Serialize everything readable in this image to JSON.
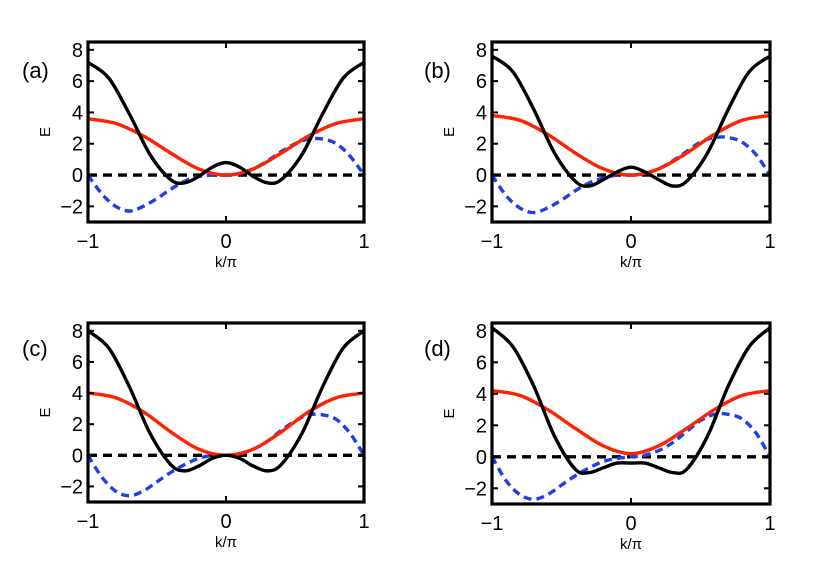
{
  "figure": {
    "description_colors": {
      "black": "#000000",
      "red": "#ff2200",
      "blue": "#1f3fe8"
    }
  },
  "chart_data": [
    {
      "panel": "(a)",
      "type": "line",
      "xlabel": "k/π",
      "ylabel": "E",
      "xlim": [
        -1,
        1
      ],
      "ylim": [
        -3,
        8.5
      ],
      "xticks": [
        -1,
        0,
        1
      ],
      "xtick_labels": [
        "−1",
        "0",
        "1"
      ],
      "yticks": [
        -2,
        0,
        2,
        4,
        6,
        8
      ],
      "ytick_labels": [
        "−2",
        "0",
        "2",
        "4",
        "6",
        "8"
      ],
      "series": [
        {
          "name": "black",
          "color": "#000000",
          "style": "solid",
          "x": [
            -1,
            -0.85,
            -0.7,
            -0.55,
            -0.4,
            -0.3,
            -0.2,
            -0.1,
            0,
            0.1,
            0.2,
            0.3,
            0.4,
            0.55,
            0.7,
            0.85,
            1
          ],
          "y": [
            7.2,
            6.2,
            3.9,
            1.3,
            -0.3,
            -0.5,
            -0.1,
            0.5,
            0.8,
            0.5,
            -0.1,
            -0.5,
            -0.3,
            1.3,
            3.9,
            6.2,
            7.2
          ]
        },
        {
          "name": "red",
          "color": "#ff2200",
          "style": "solid",
          "x": [
            -1,
            -0.8,
            -0.6,
            -0.4,
            -0.2,
            0,
            0.2,
            0.4,
            0.6,
            0.8,
            1
          ],
          "y": [
            3.6,
            3.3,
            2.5,
            1.4,
            0.4,
            0.0,
            0.4,
            1.4,
            2.5,
            3.3,
            3.6
          ]
        },
        {
          "name": "blue",
          "color": "#1f3fe8",
          "style": "dashed",
          "x": [
            -1,
            -0.9,
            -0.8,
            -0.7,
            -0.6,
            -0.5,
            -0.4,
            -0.3,
            -0.2,
            -0.1,
            0,
            0.1,
            0.2,
            0.3,
            0.4,
            0.5,
            0.6,
            0.7,
            0.8,
            0.9,
            1
          ],
          "y": [
            0.0,
            -1.2,
            -2.0,
            -2.3,
            -2.0,
            -1.5,
            -0.9,
            -0.4,
            -0.1,
            0.0,
            0.0,
            0.1,
            0.4,
            0.9,
            1.5,
            2.0,
            2.3,
            2.3,
            2.0,
            1.2,
            0.0
          ]
        },
        {
          "name": "zero-line",
          "color": "#000000",
          "style": "dashed",
          "x": [
            -1,
            1
          ],
          "y": [
            0,
            0
          ]
        }
      ]
    },
    {
      "panel": "(b)",
      "type": "line",
      "xlabel": "k/π",
      "ylabel": "E",
      "xlim": [
        -1,
        1
      ],
      "ylim": [
        -3,
        8.5
      ],
      "xticks": [
        -1,
        0,
        1
      ],
      "xtick_labels": [
        "−1",
        "0",
        "1"
      ],
      "yticks": [
        -2,
        0,
        2,
        4,
        6,
        8
      ],
      "ytick_labels": [
        "−2",
        "0",
        "2",
        "4",
        "6",
        "8"
      ],
      "series": [
        {
          "name": "black",
          "color": "#000000",
          "style": "solid",
          "x": [
            -1,
            -0.85,
            -0.7,
            -0.55,
            -0.4,
            -0.3,
            -0.2,
            -0.1,
            0,
            0.1,
            0.2,
            0.3,
            0.4,
            0.55,
            0.7,
            0.85,
            1
          ],
          "y": [
            7.6,
            6.6,
            4.2,
            1.4,
            -0.4,
            -0.7,
            -0.3,
            0.2,
            0.5,
            0.2,
            -0.3,
            -0.7,
            -0.4,
            1.4,
            4.2,
            6.6,
            7.6
          ]
        },
        {
          "name": "red",
          "color": "#ff2200",
          "style": "solid",
          "x": [
            -1,
            -0.8,
            -0.6,
            -0.4,
            -0.2,
            0,
            0.2,
            0.4,
            0.6,
            0.8,
            1
          ],
          "y": [
            3.8,
            3.5,
            2.6,
            1.4,
            0.4,
            0.0,
            0.4,
            1.4,
            2.6,
            3.5,
            3.8
          ]
        },
        {
          "name": "blue",
          "color": "#1f3fe8",
          "style": "dashed",
          "x": [
            -1,
            -0.9,
            -0.8,
            -0.7,
            -0.6,
            -0.5,
            -0.4,
            -0.3,
            -0.2,
            -0.1,
            0,
            0.1,
            0.2,
            0.3,
            0.4,
            0.5,
            0.6,
            0.7,
            0.8,
            0.9,
            1
          ],
          "y": [
            0.0,
            -1.3,
            -2.1,
            -2.4,
            -2.1,
            -1.6,
            -1.0,
            -0.5,
            -0.2,
            0.0,
            0.0,
            0.1,
            0.4,
            0.9,
            1.5,
            2.1,
            2.4,
            2.4,
            2.1,
            1.3,
            0.0
          ]
        },
        {
          "name": "zero-line",
          "color": "#000000",
          "style": "dashed",
          "x": [
            -1,
            1
          ],
          "y": [
            0,
            0
          ]
        }
      ]
    },
    {
      "panel": "(c)",
      "type": "line",
      "xlabel": "k/π",
      "ylabel": "E",
      "xlim": [
        -1,
        1
      ],
      "ylim": [
        -3,
        8.5
      ],
      "xticks": [
        -1,
        0,
        1
      ],
      "xtick_labels": [
        "−1",
        "0",
        "1"
      ],
      "yticks": [
        -2,
        0,
        2,
        4,
        6,
        8
      ],
      "ytick_labels": [
        "−2",
        "0",
        "2",
        "4",
        "6",
        "8"
      ],
      "series": [
        {
          "name": "black",
          "color": "#000000",
          "style": "solid",
          "x": [
            -1,
            -0.85,
            -0.7,
            -0.55,
            -0.4,
            -0.3,
            -0.2,
            -0.1,
            0,
            0.1,
            0.2,
            0.3,
            0.4,
            0.55,
            0.7,
            0.85,
            1
          ],
          "y": [
            8.0,
            6.9,
            4.4,
            1.4,
            -0.6,
            -1.0,
            -0.7,
            -0.2,
            0.0,
            -0.2,
            -0.7,
            -1.0,
            -0.6,
            1.4,
            4.4,
            6.9,
            8.0
          ]
        },
        {
          "name": "red",
          "color": "#ff2200",
          "style": "solid",
          "x": [
            -1,
            -0.8,
            -0.6,
            -0.4,
            -0.2,
            0,
            0.2,
            0.4,
            0.6,
            0.8,
            1
          ],
          "y": [
            4.0,
            3.7,
            2.8,
            1.5,
            0.4,
            0.0,
            0.4,
            1.5,
            2.8,
            3.7,
            4.0
          ]
        },
        {
          "name": "blue",
          "color": "#1f3fe8",
          "style": "dashed",
          "x": [
            -1,
            -0.9,
            -0.8,
            -0.7,
            -0.6,
            -0.5,
            -0.4,
            -0.3,
            -0.2,
            -0.1,
            0,
            0.1,
            0.2,
            0.3,
            0.4,
            0.5,
            0.6,
            0.7,
            0.8,
            0.9,
            1
          ],
          "y": [
            0.0,
            -1.4,
            -2.3,
            -2.6,
            -2.3,
            -1.7,
            -1.1,
            -0.6,
            -0.2,
            0.0,
            0.0,
            0.1,
            0.4,
            0.9,
            1.6,
            2.2,
            2.6,
            2.6,
            2.3,
            1.4,
            0.0
          ]
        },
        {
          "name": "zero-line",
          "color": "#000000",
          "style": "dashed",
          "x": [
            -1,
            1
          ],
          "y": [
            0,
            0
          ]
        }
      ]
    },
    {
      "panel": "(d)",
      "type": "line",
      "xlabel": "k/π",
      "ylabel": "E",
      "xlim": [
        -1,
        1
      ],
      "ylim": [
        -3,
        8.5
      ],
      "xticks": [
        -1,
        0,
        1
      ],
      "xtick_labels": [
        "−1",
        "0",
        "1"
      ],
      "yticks": [
        -2,
        0,
        2,
        4,
        6,
        8
      ],
      "ytick_labels": [
        "−2",
        "0",
        "2",
        "4",
        "6",
        "8"
      ],
      "series": [
        {
          "name": "black",
          "color": "#000000",
          "style": "solid",
          "x": [
            -1,
            -0.85,
            -0.7,
            -0.55,
            -0.4,
            -0.3,
            -0.2,
            -0.1,
            0,
            0.1,
            0.2,
            0.3,
            0.4,
            0.55,
            0.7,
            0.85,
            1
          ],
          "y": [
            8.2,
            7.0,
            4.5,
            1.3,
            -0.8,
            -1.0,
            -0.7,
            -0.4,
            -0.4,
            -0.4,
            -0.7,
            -1.0,
            -0.8,
            1.3,
            4.5,
            7.0,
            8.2
          ]
        },
        {
          "name": "red",
          "color": "#ff2200",
          "style": "solid",
          "x": [
            -1,
            -0.8,
            -0.6,
            -0.4,
            -0.2,
            0,
            0.2,
            0.4,
            0.6,
            0.8,
            1
          ],
          "y": [
            4.2,
            3.9,
            3.0,
            1.8,
            0.7,
            0.2,
            0.7,
            1.8,
            3.0,
            3.9,
            4.2
          ]
        },
        {
          "name": "blue",
          "color": "#1f3fe8",
          "style": "dashed",
          "x": [
            -1,
            -0.9,
            -0.8,
            -0.7,
            -0.6,
            -0.5,
            -0.4,
            -0.3,
            -0.2,
            -0.1,
            0,
            0.1,
            0.2,
            0.3,
            0.4,
            0.5,
            0.6,
            0.7,
            0.8,
            0.9,
            1
          ],
          "y": [
            0.0,
            -1.5,
            -2.4,
            -2.7,
            -2.4,
            -1.8,
            -1.2,
            -0.7,
            -0.3,
            -0.1,
            0.0,
            0.1,
            0.4,
            0.9,
            1.6,
            2.3,
            2.7,
            2.7,
            2.4,
            1.5,
            0.0
          ]
        },
        {
          "name": "zero-line",
          "color": "#000000",
          "style": "dashed",
          "x": [
            -1,
            1
          ],
          "y": [
            0,
            0
          ]
        }
      ]
    }
  ]
}
